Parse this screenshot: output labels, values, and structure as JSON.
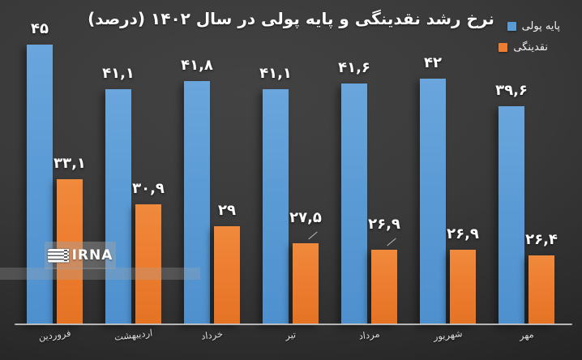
{
  "chart_data": {
    "type": "bar",
    "title": "نرخ رشد نقدینگی و پایه پولی در سال ۱۴۰۲ (درصد)",
    "categories": [
      "فروردین",
      "اردیبهشت",
      "خرداد",
      "تیر",
      "مرداد",
      "شهریور",
      "مهر"
    ],
    "series": [
      {
        "name": "پایه پولی",
        "color": "#5b9bd5",
        "values": [
          45,
          41.1,
          41.8,
          41.1,
          41.6,
          42,
          39.6
        ],
        "labels": [
          "۴۵",
          "۴۱,۱",
          "۴۱,۸",
          "۴۱,۱",
          "۴۱,۶",
          "۴۲",
          "۳۹,۶"
        ],
        "leader_lines": []
      },
      {
        "name": "نقدینگی",
        "color": "#ed7d31",
        "values": [
          33.1,
          30.9,
          29,
          27.5,
          26.9,
          26.9,
          26.4
        ],
        "labels": [
          "۳۳,۱",
          "۳۰,۹",
          "۲۹",
          "۲۷,۵",
          "۲۶,۹",
          "۲۶,۹",
          "۲۶,۴"
        ],
        "leader_lines": [
          3,
          4
        ]
      }
    ],
    "legend_position": "top-right",
    "grid": false,
    "value_axis": {
      "visible": false,
      "min": 20.3,
      "max": 46
    },
    "category_axis": {
      "visible": true,
      "line_color": "#c9c9c9"
    },
    "direction": "rtl"
  },
  "watermark": {
    "text": "IRNA"
  },
  "colors": {
    "background": "#333333",
    "axis_line": "#c9c9c9",
    "value_label_text": "#ffffff",
    "category_label_text": "#dcdcdc",
    "title_text": "#ffffff"
  }
}
